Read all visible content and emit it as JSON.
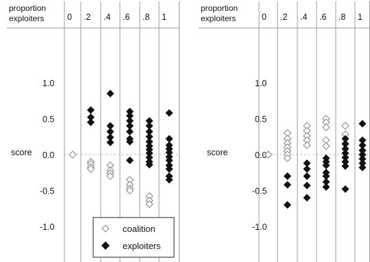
{
  "chart_data": [
    {
      "type": "scatter",
      "header_label_line1": "proportion",
      "header_label_line2": "exploiters",
      "ylabel": "score",
      "categories": [
        "0",
        ".2",
        ".4",
        ".6",
        ".8",
        "1"
      ],
      "y_ticks": [
        "1.0",
        "0.5",
        "0.0",
        "-0.5",
        "-1.0"
      ],
      "y_tick_values": [
        1.0,
        0.5,
        0.0,
        -0.5,
        -1.0
      ],
      "ylim": [
        -1.35,
        1.7
      ],
      "zero_dashed_line": true,
      "legend": {
        "placement": "bottom-right",
        "entries": [
          "coalition",
          "exploiters"
        ]
      },
      "series": [
        {
          "name": "coalition",
          "marker": "open-diamond",
          "points": [
            [
              0,
              0.0
            ],
            [
              1,
              -0.1
            ],
            [
              1,
              -0.13
            ],
            [
              1,
              -0.17
            ],
            [
              1,
              -0.2
            ],
            [
              2,
              -0.15
            ],
            [
              2,
              -0.22
            ],
            [
              2,
              -0.26
            ],
            [
              2,
              -0.3
            ],
            [
              3,
              -0.35
            ],
            [
              3,
              -0.42
            ],
            [
              3,
              -0.47
            ],
            [
              3,
              -0.5
            ],
            [
              4,
              -0.58
            ],
            [
              4,
              -0.64
            ],
            [
              4,
              -0.69
            ]
          ]
        },
        {
          "name": "exploiters",
          "marker": "filled-diamond",
          "points": [
            [
              1,
              0.62
            ],
            [
              1,
              0.52
            ],
            [
              1,
              0.45
            ],
            [
              2,
              0.85
            ],
            [
              2,
              0.4
            ],
            [
              2,
              0.32
            ],
            [
              2,
              0.24
            ],
            [
              2,
              0.17
            ],
            [
              3,
              0.6
            ],
            [
              3,
              0.54
            ],
            [
              3,
              0.47
            ],
            [
              3,
              0.4
            ],
            [
              3,
              0.32
            ],
            [
              3,
              0.22
            ],
            [
              3,
              0.18
            ],
            [
              3,
              -0.08
            ],
            [
              4,
              0.47
            ],
            [
              4,
              0.4
            ],
            [
              4,
              0.32
            ],
            [
              4,
              0.25
            ],
            [
              4,
              0.18
            ],
            [
              4,
              0.12
            ],
            [
              4,
              0.07
            ],
            [
              4,
              0.02
            ],
            [
              4,
              -0.04
            ],
            [
              4,
              -0.1
            ],
            [
              4,
              -0.14
            ],
            [
              5,
              0.58
            ],
            [
              5,
              0.22
            ],
            [
              5,
              0.13
            ],
            [
              5,
              0.08
            ],
            [
              5,
              0.03
            ],
            [
              5,
              -0.03
            ],
            [
              5,
              -0.08
            ],
            [
              5,
              -0.15
            ],
            [
              5,
              -0.2
            ],
            [
              5,
              -0.3
            ],
            [
              5,
              -0.35
            ]
          ]
        }
      ]
    },
    {
      "type": "scatter",
      "header_label_line1": "proportion",
      "header_label_line2": "exploiters",
      "ylabel": "score",
      "categories": [
        "0",
        ".2",
        ".4",
        ".6",
        ".8",
        "1"
      ],
      "y_ticks": [
        "1.0",
        "0.5",
        "0.0",
        "-0.5",
        "-1.0"
      ],
      "y_tick_values": [
        1.0,
        0.5,
        0.0,
        -0.5,
        -1.0
      ],
      "ylim": [
        -1.35,
        1.7
      ],
      "zero_dashed_line": true,
      "series": [
        {
          "name": "coalition",
          "marker": "open-diamond",
          "points": [
            [
              0,
              0.0
            ],
            [
              1,
              0.3
            ],
            [
              1,
              0.22
            ],
            [
              1,
              0.16
            ],
            [
              1,
              0.1
            ],
            [
              1,
              0.05
            ],
            [
              1,
              0.0
            ],
            [
              1,
              -0.05
            ],
            [
              2,
              0.4
            ],
            [
              2,
              0.33
            ],
            [
              2,
              0.26
            ],
            [
              2,
              0.2
            ],
            [
              2,
              0.13
            ],
            [
              3,
              0.5
            ],
            [
              3,
              0.45
            ],
            [
              3,
              0.38
            ],
            [
              3,
              0.2
            ],
            [
              3,
              0.12
            ],
            [
              4,
              0.4
            ],
            [
              4,
              0.28
            ],
            [
              4,
              0.15
            ]
          ]
        },
        {
          "name": "exploiters",
          "marker": "filled-diamond",
          "points": [
            [
              1,
              -0.3
            ],
            [
              1,
              -0.42
            ],
            [
              1,
              -0.7
            ],
            [
              2,
              -0.12
            ],
            [
              2,
              -0.2
            ],
            [
              2,
              -0.3
            ],
            [
              2,
              -0.43
            ],
            [
              2,
              -0.6
            ],
            [
              3,
              -0.05
            ],
            [
              3,
              -0.1
            ],
            [
              3,
              -0.15
            ],
            [
              3,
              -0.25
            ],
            [
              3,
              -0.3
            ],
            [
              3,
              -0.38
            ],
            [
              3,
              -0.45
            ],
            [
              4,
              0.22
            ],
            [
              4,
              0.15
            ],
            [
              4,
              0.08
            ],
            [
              4,
              0.02
            ],
            [
              4,
              -0.04
            ],
            [
              4,
              -0.1
            ],
            [
              4,
              -0.16
            ],
            [
              4,
              -0.48
            ],
            [
              5,
              0.43
            ],
            [
              5,
              0.2
            ],
            [
              5,
              0.13
            ],
            [
              5,
              0.06
            ],
            [
              5,
              0.0
            ],
            [
              5,
              -0.06
            ],
            [
              5,
              -0.12
            ],
            [
              5,
              -0.18
            ]
          ]
        }
      ]
    }
  ]
}
